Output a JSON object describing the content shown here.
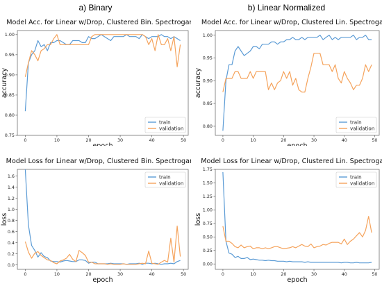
{
  "figure": {
    "column_titles": [
      "a) Binary",
      "b) Linear Normalized"
    ]
  },
  "colors": {
    "train": "#5b9bd5",
    "validation": "#f5a35c"
  },
  "chart_data": [
    {
      "type": "line",
      "title": "Model Acc. for Linear w/Drop, Clustered Bin. Spectrogams",
      "xlabel": "epoch",
      "ylabel": "accuracy",
      "xlim": [
        -2.5,
        51.5
      ],
      "ylim": [
        0.75,
        1.01
      ],
      "xticks": [
        0,
        10,
        20,
        30,
        40,
        50
      ],
      "yticks": [
        0.75,
        0.8,
        0.85,
        0.9,
        0.95,
        1.0
      ],
      "ytick_labels": [
        "0.75",
        "0.80",
        "0.85",
        "0.90",
        "0.95",
        "1.00"
      ],
      "legend": "lower-right",
      "series": [
        {
          "name": "train",
          "values": [
            0.81,
            0.93,
            0.95,
            0.96,
            0.985,
            0.97,
            0.975,
            0.96,
            0.98,
            0.98,
            0.985,
            0.985,
            0.98,
            0.975,
            0.975,
            0.985,
            0.985,
            0.985,
            0.98,
            0.98,
            0.995,
            0.99,
            0.99,
            0.995,
            1.0,
            0.995,
            0.99,
            0.985,
            0.995,
            0.995,
            0.995,
            0.995,
            1.0,
            0.995,
            0.995,
            0.995,
            0.99,
            1.0,
            0.995,
            0.99,
            0.995,
            0.995,
            0.995,
            1.0,
            0.995,
            0.995,
            0.99,
            0.995,
            0.99,
            0.985
          ]
        },
        {
          "name": "validation",
          "values": [
            0.895,
            0.93,
            0.96,
            0.95,
            0.935,
            0.96,
            0.965,
            0.975,
            0.975,
            0.99,
            1.0,
            0.975,
            0.975,
            0.975,
            0.975,
            0.975,
            0.975,
            0.975,
            0.975,
            0.975,
            0.975,
            0.995,
            1.0,
            1.0,
            1.0,
            1.0,
            1.0,
            1.0,
            1.0,
            1.0,
            1.0,
            1.0,
            1.0,
            1.0,
            1.0,
            1.0,
            1.0,
            1.0,
            0.995,
            0.975,
            0.99,
            0.96,
            1.0,
            0.975,
            0.975,
            0.99,
            0.96,
            0.995,
            0.92,
            0.975
          ]
        }
      ]
    },
    {
      "type": "line",
      "title": "Model Acc. for Linear w/Drop, Clustered Lin. Spectrogams",
      "xlabel": "epoch",
      "ylabel": "accuracy",
      "xlim": [
        -2.5,
        51.5
      ],
      "ylim": [
        0.78,
        1.01
      ],
      "xticks": [
        0,
        10,
        20,
        30,
        40,
        50
      ],
      "yticks": [
        0.8,
        0.85,
        0.9,
        0.95,
        1.0
      ],
      "ytick_labels": [
        "0.80",
        "0.85",
        "0.90",
        "0.95",
        "1.00"
      ],
      "legend": "lower-right",
      "series": [
        {
          "name": "train",
          "values": [
            0.79,
            0.9,
            0.935,
            0.935,
            0.965,
            0.975,
            0.965,
            0.955,
            0.96,
            0.965,
            0.975,
            0.975,
            0.97,
            0.98,
            0.98,
            0.98,
            0.985,
            0.985,
            0.98,
            0.985,
            0.985,
            0.99,
            0.99,
            0.995,
            0.99,
            0.99,
            0.995,
            0.99,
            0.995,
            0.995,
            0.995,
            0.995,
            1.0,
            0.99,
            0.995,
            1.0,
            0.99,
            0.995,
            0.99,
            0.995,
            0.995,
            0.995,
            0.995,
            1.0,
            0.99,
            0.995,
            0.995,
            1.0,
            0.99,
            0.99
          ]
        },
        {
          "name": "validation",
          "values": [
            0.875,
            0.905,
            0.905,
            0.905,
            0.92,
            0.92,
            0.905,
            0.905,
            0.905,
            0.92,
            0.905,
            0.92,
            0.92,
            0.92,
            0.92,
            0.88,
            0.895,
            0.88,
            0.895,
            0.9,
            0.92,
            0.905,
            0.92,
            0.89,
            0.905,
            0.88,
            0.875,
            0.875,
            0.905,
            0.93,
            0.96,
            0.96,
            0.96,
            0.935,
            0.935,
            0.935,
            0.92,
            0.935,
            0.905,
            0.895,
            0.92,
            0.905,
            0.895,
            0.88,
            0.89,
            0.89,
            0.905,
            0.935,
            0.92,
            0.935
          ]
        }
      ]
    },
    {
      "type": "line",
      "title": "Model Loss for Linear w/Drop, Clustered Bin. Spectrogams",
      "xlabel": "epoch",
      "ylabel": "loss",
      "xlim": [
        -2.5,
        51.5
      ],
      "ylim": [
        -0.08,
        1.72
      ],
      "xticks": [
        0,
        10,
        20,
        30,
        40,
        50
      ],
      "yticks": [
        0.0,
        0.2,
        0.4,
        0.6,
        0.8,
        1.0,
        1.2,
        1.4,
        1.6
      ],
      "ytick_labels": [
        "0.0",
        "0.2",
        "0.4",
        "0.6",
        "0.8",
        "1.0",
        "1.2",
        "1.4",
        "1.6"
      ],
      "legend": "top-right",
      "series": [
        {
          "name": "train",
          "values": [
            1.72,
            0.72,
            0.35,
            0.26,
            0.14,
            0.22,
            0.15,
            0.13,
            0.07,
            0.06,
            0.06,
            0.05,
            0.07,
            0.08,
            0.07,
            0.06,
            0.06,
            0.09,
            0.09,
            0.08,
            0.03,
            0.05,
            0.05,
            0.02,
            0.02,
            0.02,
            0.02,
            0.03,
            0.02,
            0.02,
            0.02,
            0.02,
            0.01,
            0.02,
            0.02,
            0.02,
            0.03,
            0.01,
            0.03,
            0.03,
            0.02,
            0.03,
            0.02,
            0.01,
            0.02,
            0.02,
            0.03,
            0.02,
            0.06,
            0.08
          ]
        },
        {
          "name": "validation",
          "values": [
            0.42,
            0.23,
            0.12,
            0.21,
            0.24,
            0.17,
            0.13,
            0.09,
            0.08,
            0.04,
            0.02,
            0.07,
            0.09,
            0.12,
            0.19,
            0.1,
            0.06,
            0.26,
            0.22,
            0.17,
            0.05,
            0.05,
            0.02,
            0.02,
            0.02,
            0.02,
            0.01,
            0.02,
            0.01,
            0.01,
            0.01,
            0.02,
            0.01,
            0.01,
            0.01,
            0.01,
            0.02,
            0.03,
            0.02,
            0.25,
            0.03,
            0.02,
            0.01,
            0.05,
            0.08,
            0.05,
            0.48,
            0.05,
            0.7,
            0.15
          ]
        }
      ]
    },
    {
      "type": "line",
      "title": "Model Loss for Linear w/Drop, Clustered Lin. Spectrogams",
      "xlabel": "epoch",
      "ylabel": "loss",
      "xlim": [
        -2.5,
        51.5
      ],
      "ylim": [
        -0.1,
        1.75
      ],
      "xticks": [
        0,
        10,
        20,
        30,
        40,
        50
      ],
      "yticks": [
        0.0,
        0.25,
        0.5,
        0.75,
        1.0,
        1.25,
        1.5,
        1.75
      ],
      "ytick_labels": [
        "0.00",
        "0.25",
        "0.50",
        "0.75",
        "1.00",
        "1.25",
        "1.50",
        "1.75"
      ],
      "legend": "top-right",
      "series": [
        {
          "name": "train",
          "values": [
            1.7,
            0.42,
            0.2,
            0.18,
            0.12,
            0.14,
            0.1,
            0.1,
            0.12,
            0.08,
            0.09,
            0.08,
            0.07,
            0.07,
            0.06,
            0.07,
            0.06,
            0.06,
            0.05,
            0.05,
            0.05,
            0.04,
            0.05,
            0.04,
            0.04,
            0.04,
            0.04,
            0.03,
            0.04,
            0.03,
            0.03,
            0.03,
            0.03,
            0.03,
            0.03,
            0.03,
            0.03,
            0.03,
            0.03,
            0.02,
            0.03,
            0.03,
            0.02,
            0.02,
            0.03,
            0.02,
            0.02,
            0.02,
            0.02,
            0.03
          ]
        },
        {
          "name": "validation",
          "values": [
            0.7,
            0.42,
            0.42,
            0.38,
            0.32,
            0.3,
            0.35,
            0.3,
            0.32,
            0.33,
            0.28,
            0.3,
            0.3,
            0.28,
            0.3,
            0.28,
            0.3,
            0.32,
            0.32,
            0.3,
            0.28,
            0.29,
            0.3,
            0.32,
            0.3,
            0.33,
            0.36,
            0.33,
            0.32,
            0.37,
            0.3,
            0.32,
            0.33,
            0.36,
            0.35,
            0.38,
            0.4,
            0.4,
            0.4,
            0.37,
            0.46,
            0.36,
            0.42,
            0.46,
            0.52,
            0.58,
            0.5,
            0.62,
            0.88,
            0.58
          ]
        }
      ]
    }
  ]
}
